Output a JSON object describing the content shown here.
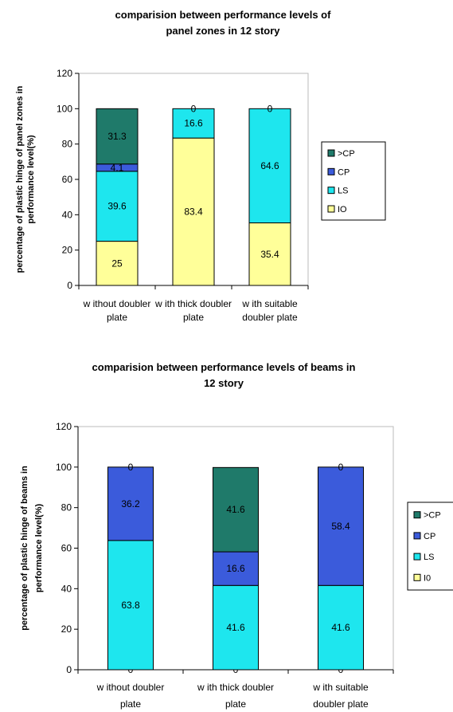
{
  "colors": {
    ">CP": "#1f7a6a",
    "CP": "#3b5bdb",
    "LS": "#1ee6ee",
    "IO": "#ffff99"
  },
  "chart_data": [
    {
      "type": "bar",
      "stacked": true,
      "title_lines": [
        "comparision between performance levels of",
        "panel zones in 12 story"
      ],
      "ylabel_lines": [
        "percentage of plastic hinge of panel zones in",
        "performance level(%)"
      ],
      "xlabel": "",
      "ylim": [
        0,
        120
      ],
      "yticks": [
        0,
        20,
        40,
        60,
        80,
        100,
        120
      ],
      "categories": [
        [
          "w ithout doubler",
          "plate"
        ],
        [
          "w ith thick doubler",
          "plate"
        ],
        [
          "w ith suitable",
          "doubler plate"
        ]
      ],
      "grid": false,
      "legend_position": "right",
      "legend": [
        ">CP",
        "CP",
        "LS",
        "IO"
      ],
      "series": [
        {
          "name": "IO",
          "values": [
            25,
            83.4,
            35.4
          ],
          "labels": [
            "25",
            "83.4",
            "35.4"
          ]
        },
        {
          "name": "LS",
          "values": [
            39.6,
            16.6,
            64.6
          ],
          "labels": [
            "39.6",
            "16.6",
            "64.6"
          ]
        },
        {
          "name": "CP",
          "values": [
            4.1,
            0,
            0
          ],
          "labels": [
            "4.1",
            "",
            ""
          ]
        },
        {
          "name": ">CP",
          "values": [
            31.3,
            0,
            0
          ],
          "labels": [
            "31.3",
            "0",
            "0"
          ]
        }
      ]
    },
    {
      "type": "bar",
      "stacked": true,
      "title_lines": [
        "comparision between performance levels of beams in",
        "12 story"
      ],
      "ylabel_lines": [
        "percentage of plastic hinge of beams in",
        "performance level(%)"
      ],
      "xlabel": "",
      "ylim": [
        0,
        120
      ],
      "yticks": [
        0,
        20,
        40,
        60,
        80,
        100,
        120
      ],
      "categories": [
        [
          "w ithout doubler",
          "plate"
        ],
        [
          "w ith thick doubler",
          "plate"
        ],
        [
          "w ith suitable",
          "doubler plate"
        ]
      ],
      "grid": false,
      "legend_position": "right",
      "legend": [
        ">CP",
        "CP",
        "LS",
        "I0"
      ],
      "series": [
        {
          "name": "I0",
          "values": [
            0,
            0,
            0
          ],
          "labels": [
            "0",
            "0",
            "0"
          ]
        },
        {
          "name": "LS",
          "values": [
            63.8,
            41.6,
            41.6
          ],
          "labels": [
            "63.8",
            "41.6",
            "41.6"
          ]
        },
        {
          "name": "CP",
          "values": [
            36.2,
            16.6,
            58.4
          ],
          "labels": [
            "36.2",
            "16.6",
            "58.4"
          ]
        },
        {
          "name": ">CP",
          "values": [
            0,
            41.6,
            0
          ],
          "labels": [
            "0",
            "41.6",
            "0"
          ]
        }
      ]
    }
  ]
}
